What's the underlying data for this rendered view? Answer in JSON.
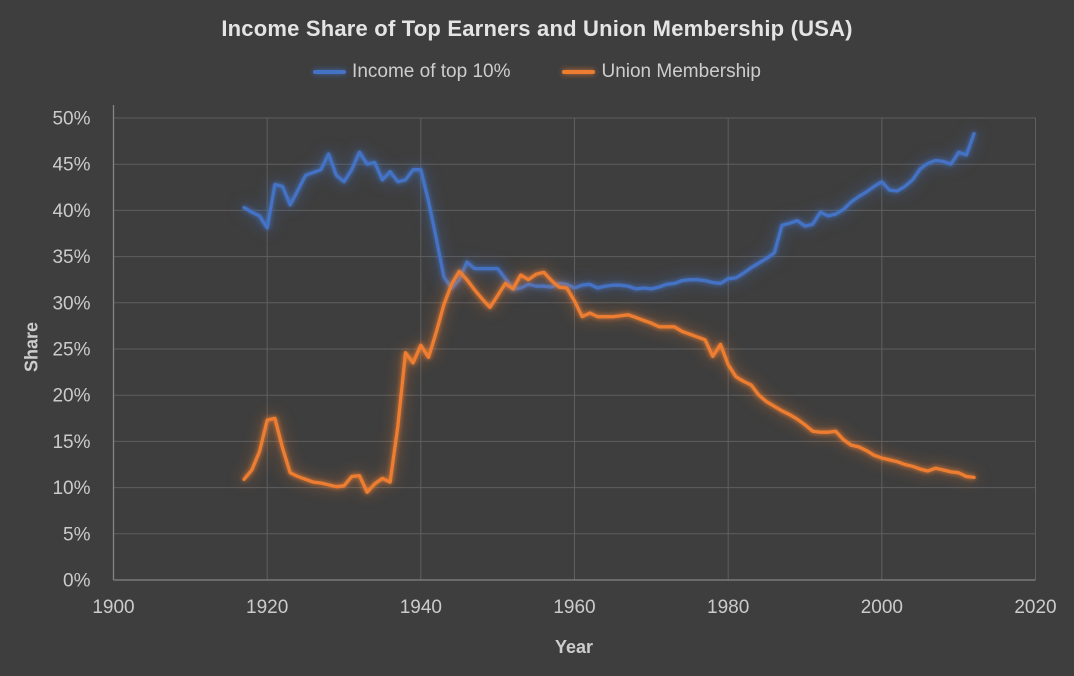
{
  "title": "Income Share of Top Earners and Union Membership (USA)",
  "legend": {
    "items": [
      {
        "label": "Income of top 10%",
        "color": "#4472c4"
      },
      {
        "label": "Union Membership",
        "color": "#ed7d31"
      }
    ]
  },
  "colors": {
    "background": "#3e3e3e",
    "gridline": "#5f5f5f",
    "axis_line": "#858585",
    "text": "#cdcdcd",
    "series_blue": "#4472c4",
    "series_orange": "#ed7d31"
  },
  "chart_data": {
    "type": "line",
    "title": "Income Share of Top Earners and Union Membership (USA)",
    "xlabel": "Year",
    "ylabel": "Share",
    "xlim": [
      1900,
      2020
    ],
    "ylim": [
      0,
      50
    ],
    "x_tick_labels": [
      "1900",
      "1920",
      "1940",
      "1960",
      "1980",
      "2000",
      "2020"
    ],
    "x_tick_values": [
      1900,
      1920,
      1940,
      1960,
      1980,
      2000,
      2020
    ],
    "y_tick_labels": [
      "0%",
      "5%",
      "10%",
      "15%",
      "20%",
      "25%",
      "30%",
      "35%",
      "40%",
      "45%",
      "50%"
    ],
    "y_tick_values": [
      0,
      5,
      10,
      15,
      20,
      25,
      30,
      35,
      40,
      45,
      50
    ],
    "grid": true,
    "legend_position": "top",
    "x": [
      1917,
      1918,
      1919,
      1920,
      1921,
      1922,
      1923,
      1924,
      1925,
      1926,
      1927,
      1928,
      1929,
      1930,
      1931,
      1932,
      1933,
      1934,
      1935,
      1936,
      1937,
      1938,
      1939,
      1940,
      1941,
      1942,
      1943,
      1944,
      1945,
      1946,
      1947,
      1948,
      1949,
      1950,
      1951,
      1952,
      1953,
      1954,
      1955,
      1956,
      1957,
      1958,
      1959,
      1960,
      1961,
      1962,
      1963,
      1964,
      1965,
      1966,
      1967,
      1968,
      1969,
      1970,
      1971,
      1972,
      1973,
      1974,
      1975,
      1976,
      1977,
      1978,
      1979,
      1980,
      1981,
      1982,
      1983,
      1984,
      1985,
      1986,
      1987,
      1988,
      1989,
      1990,
      1991,
      1992,
      1993,
      1994,
      1995,
      1996,
      1997,
      1998,
      1999,
      2000,
      2001,
      2002,
      2003,
      2004,
      2005,
      2006,
      2007,
      2008,
      2009,
      2010,
      2011,
      2012
    ],
    "series": [
      {
        "name": "Income of top 10%",
        "color": "#4472c4",
        "values": [
          40.3,
          39.8,
          39.4,
          38.1,
          42.8,
          42.6,
          40.6,
          42.2,
          43.8,
          44.1,
          44.4,
          46.1,
          43.8,
          43.1,
          44.4,
          46.3,
          45.0,
          45.2,
          43.3,
          44.2,
          43.1,
          43.3,
          44.4,
          44.4,
          41.0,
          37.0,
          32.8,
          31.6,
          32.5,
          34.4,
          33.7,
          33.7,
          33.7,
          33.7,
          32.6,
          31.5,
          31.6,
          32.0,
          31.8,
          31.8,
          31.7,
          32.1,
          32.0,
          31.6,
          31.9,
          32.0,
          31.6,
          31.8,
          31.9,
          31.9,
          31.8,
          31.5,
          31.6,
          31.5,
          31.7,
          32.0,
          32.1,
          32.4,
          32.5,
          32.5,
          32.4,
          32.2,
          32.1,
          32.6,
          32.7,
          33.2,
          33.8,
          34.3,
          34.8,
          35.4,
          38.4,
          38.6,
          38.9,
          38.3,
          38.5,
          39.8,
          39.4,
          39.6,
          40.1,
          40.9,
          41.5,
          42.0,
          42.6,
          43.1,
          42.2,
          42.1,
          42.6,
          43.3,
          44.5,
          45.1,
          45.4,
          45.3,
          45.0,
          46.3,
          46.0,
          48.3
        ]
      },
      {
        "name": "Union Membership",
        "color": "#ed7d31",
        "values": [
          10.9,
          11.9,
          13.9,
          17.3,
          17.5,
          14.3,
          11.6,
          11.2,
          10.9,
          10.6,
          10.5,
          10.3,
          10.1,
          10.2,
          11.2,
          11.3,
          9.5,
          10.4,
          11.0,
          10.6,
          16.6,
          24.6,
          23.5,
          25.4,
          24.1,
          26.8,
          29.8,
          32.0,
          33.4,
          32.5,
          31.4,
          30.4,
          29.5,
          30.8,
          32.1,
          31.5,
          33.0,
          32.5,
          33.1,
          33.3,
          32.4,
          31.7,
          31.6,
          30.2,
          28.5,
          28.9,
          28.5,
          28.5,
          28.5,
          28.6,
          28.7,
          28.4,
          28.1,
          27.8,
          27.4,
          27.4,
          27.4,
          26.9,
          26.6,
          26.3,
          26.0,
          24.2,
          25.5,
          23.3,
          22.0,
          21.5,
          21.1,
          20.0,
          19.3,
          18.8,
          18.3,
          17.9,
          17.4,
          16.8,
          16.1,
          16.0,
          16.0,
          16.1,
          15.2,
          14.6,
          14.4,
          14.0,
          13.5,
          13.2,
          13.0,
          12.8,
          12.5,
          12.3,
          12.0,
          11.8,
          12.1,
          11.9,
          11.7,
          11.6,
          11.2,
          11.1
        ]
      }
    ]
  }
}
